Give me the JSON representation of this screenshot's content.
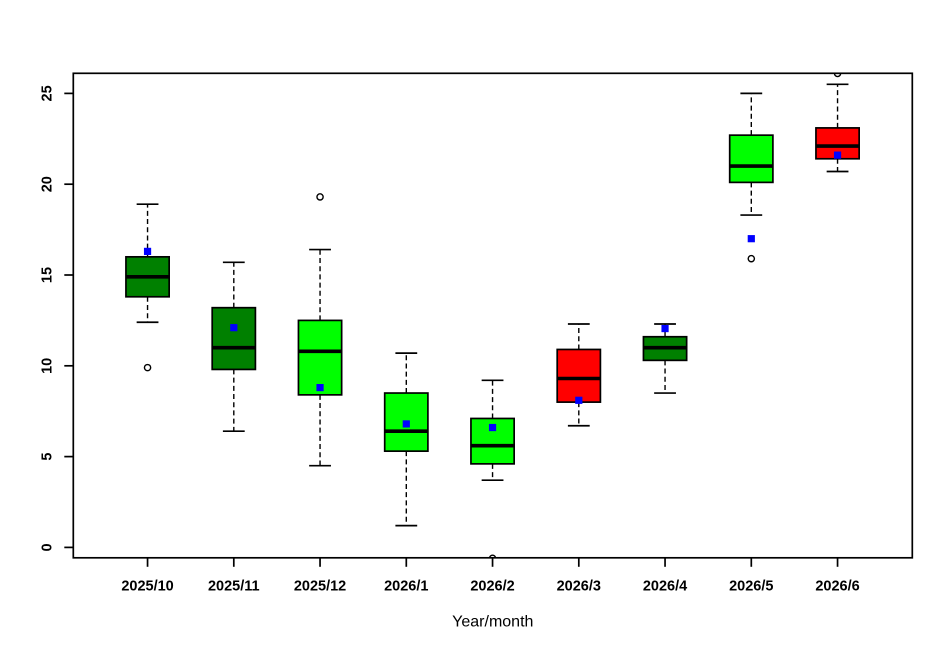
{
  "chart_data": {
    "type": "boxplot",
    "title": "",
    "xlabel": "Year/month",
    "ylabel": "",
    "categories": [
      "2025/10",
      "2025/11",
      "2025/12",
      "2026/1",
      "2026/2",
      "2026/3",
      "2026/4",
      "2026/5",
      "2026/6"
    ],
    "y_ticks": [
      0,
      5,
      10,
      15,
      20,
      25
    ],
    "y_tick_labels": [
      "0",
      "5",
      "10",
      "15",
      "20",
      "25"
    ],
    "ylim": [
      -0.57,
      26.1
    ],
    "grid": false,
    "legend": "none",
    "background": "#ffffff",
    "frame_color": "#000000",
    "point_color": "#0000ff",
    "point_marker": "filled-square",
    "outlier_marker": "open-circle",
    "palette": {
      "darkgreen": "#008000",
      "green": "#00ff00",
      "red": "#ff0000",
      "blue": "#0000ff"
    },
    "boxes": [
      {
        "category": "2025/10",
        "fill": "#008000",
        "whisker_low": 12.4,
        "q1": 13.8,
        "median": 14.9,
        "q3": 16.0,
        "whisker_high": 18.9,
        "outliers": [
          9.9
        ],
        "point": 16.3
      },
      {
        "category": "2025/11",
        "fill": "#008000",
        "whisker_low": 6.4,
        "q1": 9.8,
        "median": 11.0,
        "q3": 13.2,
        "whisker_high": 15.7,
        "outliers": [],
        "point": 12.1
      },
      {
        "category": "2025/12",
        "fill": "#00ff00",
        "whisker_low": 4.5,
        "q1": 8.4,
        "median": 10.8,
        "q3": 12.5,
        "whisker_high": 16.4,
        "outliers": [
          19.3
        ],
        "point": 8.8
      },
      {
        "category": "2026/1",
        "fill": "#00ff00",
        "whisker_low": 1.2,
        "q1": 5.3,
        "median": 6.4,
        "q3": 8.5,
        "whisker_high": 10.7,
        "outliers": [],
        "point": 6.8
      },
      {
        "category": "2026/2",
        "fill": "#00ff00",
        "whisker_low": 3.7,
        "q1": 4.6,
        "median": 5.6,
        "q3": 7.1,
        "whisker_high": 9.2,
        "outliers": [
          -0.6
        ],
        "point": 6.6
      },
      {
        "category": "2026/3",
        "fill": "#ff0000",
        "whisker_low": 6.7,
        "q1": 8.0,
        "median": 9.3,
        "q3": 10.9,
        "whisker_high": 12.3,
        "outliers": [],
        "point": 8.1
      },
      {
        "category": "2026/4",
        "fill": "#008000",
        "whisker_low": 8.5,
        "q1": 10.3,
        "median": 11.0,
        "q3": 11.6,
        "whisker_high": 12.3,
        "outliers": [],
        "point": 12.05
      },
      {
        "category": "2026/5",
        "fill": "#00ff00",
        "whisker_low": 18.3,
        "q1": 20.1,
        "median": 21.0,
        "q3": 22.7,
        "whisker_high": 25.0,
        "outliers": [
          15.9
        ],
        "point": 17.0
      },
      {
        "category": "2026/6",
        "fill": "#ff0000",
        "whisker_low": 20.7,
        "q1": 21.4,
        "median": 22.1,
        "q3": 23.1,
        "whisker_high": 25.5,
        "outliers": [
          26.1
        ],
        "point": 21.6
      }
    ]
  }
}
